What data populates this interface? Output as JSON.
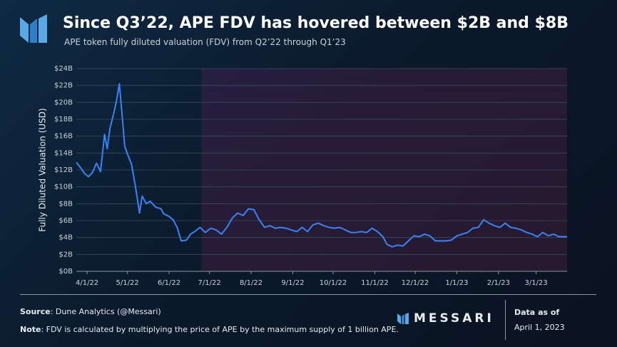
{
  "title": "Since Q3’22, APE FDV has hovered between $2B and $8B",
  "subtitle": "APE token fully diluted valuation (FDV) from Q2’22 through Q1’23",
  "chart_data": {
    "type": "line",
    "y_label": "Fully Diluted Valuation (USD)",
    "x": [
      "2022-03-24",
      "2022-03-27",
      "2022-03-30",
      "2022-04-02",
      "2022-04-05",
      "2022-04-08",
      "2022-04-11",
      "2022-04-14",
      "2022-04-16",
      "2022-04-18",
      "2022-04-21",
      "2022-04-23",
      "2022-04-25",
      "2022-04-27",
      "2022-04-29",
      "2022-05-01",
      "2022-05-04",
      "2022-05-07",
      "2022-05-10",
      "2022-05-12",
      "2022-05-15",
      "2022-05-18",
      "2022-05-22",
      "2022-05-26",
      "2022-05-28",
      "2022-06-01",
      "2022-06-04",
      "2022-06-07",
      "2022-06-10",
      "2022-06-14",
      "2022-06-17",
      "2022-06-20",
      "2022-06-24",
      "2022-06-28",
      "2022-07-02",
      "2022-07-06",
      "2022-07-10",
      "2022-07-14",
      "2022-07-18",
      "2022-07-22",
      "2022-07-26",
      "2022-07-30",
      "2022-08-03",
      "2022-08-07",
      "2022-08-11",
      "2022-08-15",
      "2022-08-19",
      "2022-08-23",
      "2022-08-27",
      "2022-08-31",
      "2022-09-04",
      "2022-09-08",
      "2022-09-12",
      "2022-09-16",
      "2022-09-20",
      "2022-09-24",
      "2022-09-28",
      "2022-10-02",
      "2022-10-06",
      "2022-10-10",
      "2022-10-14",
      "2022-10-18",
      "2022-10-22",
      "2022-10-26",
      "2022-10-30",
      "2022-11-03",
      "2022-11-07",
      "2022-11-10",
      "2022-11-14",
      "2022-11-18",
      "2022-11-22",
      "2022-11-26",
      "2022-11-30",
      "2022-12-04",
      "2022-12-08",
      "2022-12-12",
      "2022-12-16",
      "2022-12-20",
      "2022-12-24",
      "2022-12-28",
      "2023-01-01",
      "2023-01-05",
      "2023-01-09",
      "2023-01-13",
      "2023-01-17",
      "2023-01-21",
      "2023-01-25",
      "2023-01-29",
      "2023-02-02",
      "2023-02-06",
      "2023-02-10",
      "2023-02-14",
      "2023-02-18",
      "2023-02-22",
      "2023-02-26",
      "2023-03-02",
      "2023-03-06",
      "2023-03-10",
      "2023-03-14",
      "2023-03-18",
      "2023-03-24"
    ],
    "series": [
      {
        "name": "APE FDV",
        "color": "#3b82f6",
        "values": [
          12.9,
          12.3,
          11.6,
          11.2,
          11.7,
          12.8,
          11.8,
          16.2,
          14.5,
          16.9,
          18.8,
          20.3,
          22.2,
          18.6,
          14.8,
          13.9,
          12.7,
          10.0,
          6.9,
          8.9,
          8.0,
          8.3,
          7.6,
          7.4,
          6.8,
          6.5,
          6.1,
          5.2,
          3.6,
          3.7,
          4.4,
          4.7,
          5.2,
          4.6,
          5.1,
          4.9,
          4.4,
          5.2,
          6.3,
          6.9,
          6.6,
          7.4,
          7.3,
          6.1,
          5.2,
          5.4,
          5.1,
          5.2,
          5.1,
          4.9,
          4.7,
          5.2,
          4.7,
          5.5,
          5.7,
          5.4,
          5.2,
          5.1,
          5.2,
          4.9,
          4.6,
          4.6,
          4.7,
          4.6,
          5.1,
          4.7,
          4.1,
          3.2,
          2.9,
          3.1,
          3.0,
          3.6,
          4.2,
          4.1,
          4.4,
          4.2,
          3.6,
          3.6,
          3.6,
          3.7,
          4.2,
          4.4,
          4.6,
          5.1,
          5.2,
          6.1,
          5.7,
          5.4,
          5.2,
          5.7,
          5.2,
          5.1,
          4.9,
          4.6,
          4.4,
          4.1,
          4.6,
          4.2,
          4.4,
          4.1,
          4.1
        ]
      }
    ],
    "xlim": [
      "2022-03-24",
      "2023-03-24"
    ],
    "xticks": [
      {
        "value": "2022-04-01",
        "label": "4/1/22"
      },
      {
        "value": "2022-05-01",
        "label": "5/1/22"
      },
      {
        "value": "2022-06-01",
        "label": "6/1/22"
      },
      {
        "value": "2022-07-01",
        "label": "7/1/22"
      },
      {
        "value": "2022-08-01",
        "label": "8/1/22"
      },
      {
        "value": "2022-09-01",
        "label": "9/1/22"
      },
      {
        "value": "2022-10-01",
        "label": "10/1/22"
      },
      {
        "value": "2022-11-01",
        "label": "11/1/22"
      },
      {
        "value": "2022-12-01",
        "label": "12/1/22"
      },
      {
        "value": "2023-01-01",
        "label": "1/1/23"
      },
      {
        "value": "2023-02-01",
        "label": "2/1/23"
      },
      {
        "value": "2023-03-01",
        "label": "3/1/23"
      }
    ],
    "ylim": [
      0,
      24
    ],
    "yticks": [
      {
        "value": 0,
        "label": "$0B"
      },
      {
        "value": 2,
        "label": "$2B"
      },
      {
        "value": 4,
        "label": "$4B"
      },
      {
        "value": 6,
        "label": "$6B"
      },
      {
        "value": 8,
        "label": "$8B"
      },
      {
        "value": 10,
        "label": "$10B"
      },
      {
        "value": 12,
        "label": "$12B"
      },
      {
        "value": 14,
        "label": "$14B"
      },
      {
        "value": 16,
        "label": "$16B"
      },
      {
        "value": 18,
        "label": "$18B"
      },
      {
        "value": 20,
        "label": "$20B"
      },
      {
        "value": 22,
        "label": "$22B"
      },
      {
        "value": 24,
        "label": "$24B"
      }
    ],
    "grid": true,
    "shaded_from": "2022-06-25"
  },
  "footer": {
    "source_label": "Source",
    "source": ": Dune Analytics (@Messari)",
    "note_label": "Note",
    "note": ": FDV is calculated by multiplying the price of APE by the maximum supply of 1 billion APE.",
    "brand": "MESSARI",
    "date_label": "Data as of",
    "date": "April 1, 2023"
  }
}
